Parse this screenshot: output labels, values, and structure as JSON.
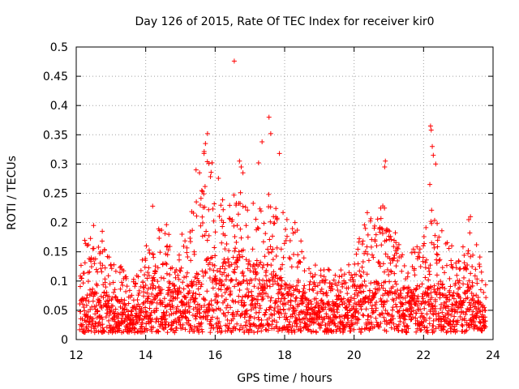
{
  "chart_data": {
    "type": "scatter",
    "title": "Day 126 of 2015, Rate Of TEC Index for receiver kir0",
    "xlabel": "GPS time / hours",
    "ylabel": "ROTI / TECUs",
    "xlim": [
      12,
      24
    ],
    "ylim": [
      0,
      0.5
    ],
    "xticks": [
      12,
      14,
      16,
      18,
      20,
      22,
      24
    ],
    "yticks": [
      0,
      0.05,
      0.1,
      0.15,
      0.2,
      0.25,
      0.3,
      0.35,
      0.4,
      0.45,
      0.5
    ],
    "ytick_labels": [
      "0",
      "0.05",
      "0.1",
      "0.15",
      "0.2",
      "0.25",
      "0.3",
      "0.35",
      "0.4",
      "0.45",
      "0.5"
    ],
    "grid": true,
    "marker": "+",
    "color": "#ff0000",
    "profile": [
      {
        "x": 12.1,
        "typ": 0.045,
        "hi": 0.16
      },
      {
        "x": 12.5,
        "typ": 0.06,
        "hi": 0.2
      },
      {
        "x": 12.9,
        "typ": 0.05,
        "hi": 0.15
      },
      {
        "x": 13.3,
        "typ": 0.045,
        "hi": 0.14
      },
      {
        "x": 13.6,
        "typ": 0.03,
        "hi": 0.1
      },
      {
        "x": 13.9,
        "typ": 0.04,
        "hi": 0.14
      },
      {
        "x": 14.2,
        "typ": 0.07,
        "hi": 0.2
      },
      {
        "x": 14.5,
        "typ": 0.075,
        "hi": 0.22
      },
      {
        "x": 14.9,
        "typ": 0.06,
        "hi": 0.17
      },
      {
        "x": 15.2,
        "typ": 0.06,
        "hi": 0.2
      },
      {
        "x": 15.5,
        "typ": 0.08,
        "hi": 0.29
      },
      {
        "x": 15.8,
        "typ": 0.1,
        "hi": 0.35
      },
      {
        "x": 16.1,
        "typ": 0.09,
        "hi": 0.28
      },
      {
        "x": 16.5,
        "typ": 0.1,
        "hi": 0.24
      },
      {
        "x": 16.8,
        "typ": 0.11,
        "hi": 0.31
      },
      {
        "x": 17.1,
        "typ": 0.09,
        "hi": 0.24
      },
      {
        "x": 17.5,
        "typ": 0.09,
        "hi": 0.26
      },
      {
        "x": 17.9,
        "typ": 0.07,
        "hi": 0.22
      },
      {
        "x": 18.3,
        "typ": 0.06,
        "hi": 0.2
      },
      {
        "x": 18.7,
        "typ": 0.05,
        "hi": 0.15
      },
      {
        "x": 19.0,
        "typ": 0.045,
        "hi": 0.13
      },
      {
        "x": 19.4,
        "typ": 0.04,
        "hi": 0.12
      },
      {
        "x": 19.8,
        "typ": 0.045,
        "hi": 0.12
      },
      {
        "x": 20.1,
        "typ": 0.06,
        "hi": 0.18
      },
      {
        "x": 20.5,
        "typ": 0.07,
        "hi": 0.24
      },
      {
        "x": 20.9,
        "typ": 0.07,
        "hi": 0.23
      },
      {
        "x": 21.3,
        "typ": 0.06,
        "hi": 0.18
      },
      {
        "x": 21.7,
        "typ": 0.06,
        "hi": 0.16
      },
      {
        "x": 22.0,
        "typ": 0.065,
        "hi": 0.18
      },
      {
        "x": 22.3,
        "typ": 0.07,
        "hi": 0.24
      },
      {
        "x": 22.7,
        "typ": 0.06,
        "hi": 0.17
      },
      {
        "x": 23.0,
        "typ": 0.05,
        "hi": 0.15
      },
      {
        "x": 23.3,
        "typ": 0.06,
        "hi": 0.2
      },
      {
        "x": 23.6,
        "typ": 0.045,
        "hi": 0.15
      },
      {
        "x": 23.8,
        "typ": 0.03,
        "hi": 0.1
      }
    ],
    "notable_points": [
      {
        "x": 16.55,
        "y": 0.476
      },
      {
        "x": 17.55,
        "y": 0.38
      },
      {
        "x": 17.6,
        "y": 0.352
      },
      {
        "x": 17.85,
        "y": 0.318
      },
      {
        "x": 17.35,
        "y": 0.338
      },
      {
        "x": 15.78,
        "y": 0.352
      },
      {
        "x": 15.72,
        "y": 0.335
      },
      {
        "x": 15.68,
        "y": 0.318
      },
      {
        "x": 22.2,
        "y": 0.365
      },
      {
        "x": 22.22,
        "y": 0.358
      },
      {
        "x": 22.25,
        "y": 0.33
      },
      {
        "x": 22.28,
        "y": 0.315
      },
      {
        "x": 22.35,
        "y": 0.3
      },
      {
        "x": 20.9,
        "y": 0.305
      },
      {
        "x": 20.88,
        "y": 0.295
      },
      {
        "x": 16.7,
        "y": 0.305
      },
      {
        "x": 16.75,
        "y": 0.295
      },
      {
        "x": 16.8,
        "y": 0.285
      },
      {
        "x": 15.45,
        "y": 0.29
      },
      {
        "x": 15.55,
        "y": 0.285
      },
      {
        "x": 17.25,
        "y": 0.302
      },
      {
        "x": 22.18,
        "y": 0.265
      },
      {
        "x": 23.35,
        "y": 0.21
      },
      {
        "x": 23.3,
        "y": 0.205
      },
      {
        "x": 14.2,
        "y": 0.228
      },
      {
        "x": 12.75,
        "y": 0.185
      },
      {
        "x": 12.5,
        "y": 0.195
      },
      {
        "x": 16.55,
        "y": 0.04
      },
      {
        "x": 16.85,
        "y": 0.038
      }
    ]
  }
}
